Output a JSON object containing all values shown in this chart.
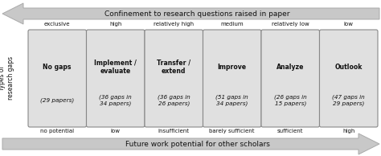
{
  "top_arrow_text": "Confinement to research questions raised in paper",
  "bottom_arrow_text": "Future work potential for other scholars",
  "left_label": "Types of\nresearch gaps",
  "top_labels": [
    "exclusive",
    "high",
    "relatively high",
    "medium",
    "relatively low",
    "low"
  ],
  "bottom_labels": [
    "no potential",
    "low",
    "insufficient",
    "barely sufficient",
    "sufficient",
    "high"
  ],
  "boxes": [
    {
      "title": "No gaps",
      "subtitle": "(29 papers)"
    },
    {
      "title": "Implement /\nevaluate",
      "subtitle": "(36 gaps in\n34 papers)"
    },
    {
      "title": "Transfer /\nextend",
      "subtitle": "(36 gaps in\n26 papers)"
    },
    {
      "title": "Improve",
      "subtitle": "(51 gaps in\n34 papers)"
    },
    {
      "title": "Analyze",
      "subtitle": "(26 gaps in\n15 papers)"
    },
    {
      "title": "Outlook",
      "subtitle": "(47 gaps in\n29 papers)"
    }
  ],
  "box_color": "#e0e0e0",
  "box_edge_color": "#888888",
  "arrow_color": "#c8c8c8",
  "arrow_edge_color": "#aaaaaa",
  "background_color": "#ffffff",
  "text_color": "#111111",
  "fig_width": 4.74,
  "fig_height": 1.94,
  "dpi": 100
}
